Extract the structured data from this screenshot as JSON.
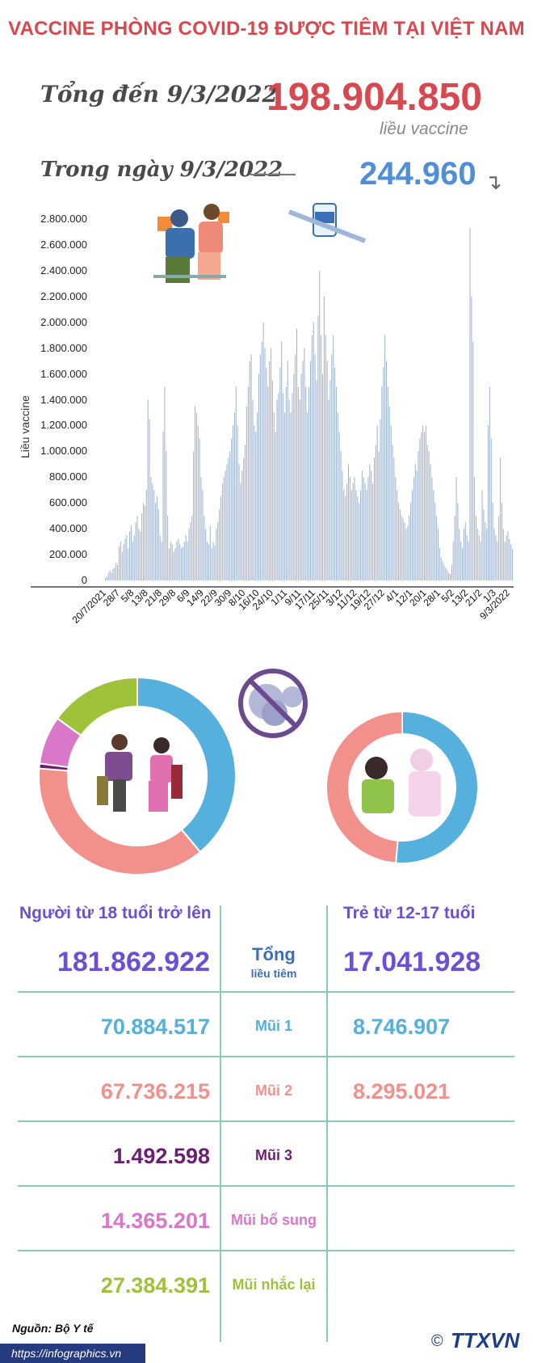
{
  "title": "VACCINE PHÒNG COVID-19 ĐƯỢC TIÊM TẠI VIỆT NAM",
  "summary": {
    "total_label": "Tổng đến 9/3/2022",
    "total_value": "198.904.850",
    "unit": "liều vaccine",
    "day_label": "Trong ngày 9/3/2022",
    "day_value": "244.960"
  },
  "colors": {
    "red": "#d8484f",
    "blue": "#4f8ed9",
    "bar": "#9fb4cf",
    "cyan": "#56b0dd",
    "salmon": "#f2908c",
    "purple": "#6b1f72",
    "pink": "#d977c8",
    "green": "#9ec33a",
    "violet": "#6b4fd6"
  },
  "chart_data": [
    {
      "type": "bar",
      "ylabel": "Liều vaccine",
      "ylim": [
        0,
        2800000
      ],
      "yticks": [
        "0",
        "200.000",
        "400.000",
        "600.000",
        "800.000",
        "1.000.000",
        "1.200.000",
        "1.400.000",
        "1.600.000",
        "1.800.000",
        "2.000.000",
        "2.200.000",
        "2.400.000",
        "2.600.000",
        "2.800.000"
      ],
      "xticks": [
        "20/7/2021",
        "28/7",
        "5/8",
        "13/8",
        "21/8",
        "29/8",
        "6/9",
        "14/9",
        "22/9",
        "30/9",
        "8/10",
        "16/10",
        "24/10",
        "1/11",
        "9/11",
        "17/11",
        "25/11",
        "3/12",
        "11/12",
        "19/12",
        "27/12",
        "4/1",
        "12/1",
        "20/1",
        "28/1",
        "5/2",
        "13/2",
        "21/2",
        "1/3",
        "9/3/2022"
      ],
      "values": [
        20000,
        30000,
        60000,
        80000,
        60000,
        90000,
        100000,
        140000,
        120000,
        260000,
        300000,
        220000,
        280000,
        320000,
        350000,
        250000,
        380000,
        420000,
        300000,
        350000,
        450000,
        500000,
        400000,
        380000,
        520000,
        600000,
        580000,
        700000,
        1400000,
        1250000,
        800000,
        750000,
        700000,
        600000,
        650000,
        550000,
        350000,
        300000,
        1150000,
        1500000,
        1000000,
        500000,
        250000,
        300000,
        280000,
        220000,
        250000,
        300000,
        320000,
        280000,
        250000,
        260000,
        300000,
        350000,
        300000,
        400000,
        450000,
        500000,
        1000000,
        1350000,
        1300000,
        1200000,
        1100000,
        800000,
        700000,
        500000,
        400000,
        300000,
        280000,
        420000,
        250000,
        300000,
        270000,
        400000,
        450000,
        550000,
        650000,
        750000,
        800000,
        850000,
        900000,
        950000,
        1000000,
        1100000,
        1200000,
        1300000,
        1500000,
        1200000,
        900000,
        750000,
        850000,
        950000,
        1050000,
        1350000,
        1500000,
        1700000,
        1750000,
        1400000,
        1200000,
        1150000,
        1300000,
        1600000,
        1750000,
        1850000,
        2000000,
        1800000,
        1650000,
        1500000,
        1700000,
        1800000,
        1550000,
        1300000,
        1150000,
        1400000,
        1450000,
        1650000,
        1850000,
        1450000,
        1300000,
        1500000,
        1700000,
        1400000,
        1300000,
        1450000,
        1600000,
        1750000,
        1950000,
        1500000,
        1400000,
        1600000,
        1700000,
        1800000,
        1500000,
        1300000,
        1500000,
        1700000,
        1900000,
        2000000,
        1750000,
        1550000,
        2050000,
        2400000,
        1900000,
        1600000,
        2200000,
        1900000,
        1700000,
        1400000,
        1550000,
        1750000,
        1900000,
        1650000,
        1500000,
        1300000,
        1150000,
        1000000,
        850000,
        700000,
        650000,
        750000,
        900000,
        800000,
        700000,
        750000,
        800000,
        700000,
        650000,
        600000,
        700000,
        850000,
        800000,
        750000,
        700000,
        800000,
        900000,
        850000,
        750000,
        950000,
        1050000,
        1200000,
        1000000,
        1250000,
        1500000,
        1650000,
        1900000,
        1700000,
        1500000,
        1350000,
        1200000,
        1050000,
        950000,
        800000,
        700000,
        600000,
        550000,
        500000,
        480000,
        450000,
        400000,
        420000,
        500000,
        600000,
        700000,
        800000,
        900000,
        850000,
        1000000,
        1100000,
        1150000,
        1200000,
        1150000,
        1200000,
        1050000,
        1000000,
        900000,
        800000,
        700000,
        600000,
        500000,
        400000,
        250000,
        180000,
        150000,
        120000,
        100000,
        80000,
        60000,
        50000,
        120000,
        300000,
        500000,
        800000,
        600000,
        400000,
        300000,
        250000,
        400000,
        450000,
        350000,
        300000,
        2730000,
        2200000,
        1850000,
        800000,
        500000,
        400000,
        350000,
        300000,
        700000,
        550000,
        450000,
        400000,
        1200000,
        1500000,
        1100000,
        600000,
        400000,
        350000,
        300000,
        500000,
        950000,
        600000,
        400000,
        300000,
        350000,
        380000,
        320000,
        280000,
        244960
      ]
    },
    {
      "type": "pie",
      "labels": [
        "Mũi 1",
        "Mũi 2",
        "Mũi 3",
        "Mũi bổ sung",
        "Mũi nhắc lại"
      ],
      "values": [
        70884517,
        67736215,
        1492598,
        14365201,
        27384391
      ],
      "colors": [
        "#56b0dd",
        "#f2908c",
        "#6b1f72",
        "#d977c8",
        "#9ec33a"
      ]
    },
    {
      "type": "pie",
      "labels": [
        "Mũi 1",
        "Mũi 2"
      ],
      "values": [
        8746907,
        8295021
      ],
      "colors": [
        "#56b0dd",
        "#f2908c"
      ]
    }
  ],
  "table": {
    "adult_header": "Người từ 18 tuổi trở lên",
    "child_header": "Trẻ từ 12-17 tuổi",
    "total_label": "Tổng",
    "total_sub": "liều tiêm",
    "adult_total": "181.862.922",
    "child_total": "17.041.928",
    "rows": [
      {
        "label": "Mũi 1",
        "adult": "70.884.517",
        "child": "8.746.907",
        "color": "#56b0dd"
      },
      {
        "label": "Mũi 2",
        "adult": "67.736.215",
        "child": "8.295.021",
        "color": "#f2908c"
      },
      {
        "label": "Mũi 3",
        "adult": "1.492.598",
        "child": "",
        "color": "#6b1f72"
      },
      {
        "label": "Mũi bổ sung",
        "adult": "14.365.201",
        "child": "",
        "color": "#d977c8"
      },
      {
        "label": "Mũi nhắc lại",
        "adult": "27.384.391",
        "child": "",
        "color": "#9ec33a"
      }
    ]
  },
  "footer": {
    "source": "Nguồn: Bộ Y tế",
    "url": "https://infographics.vn",
    "logo": "TTXVN"
  }
}
